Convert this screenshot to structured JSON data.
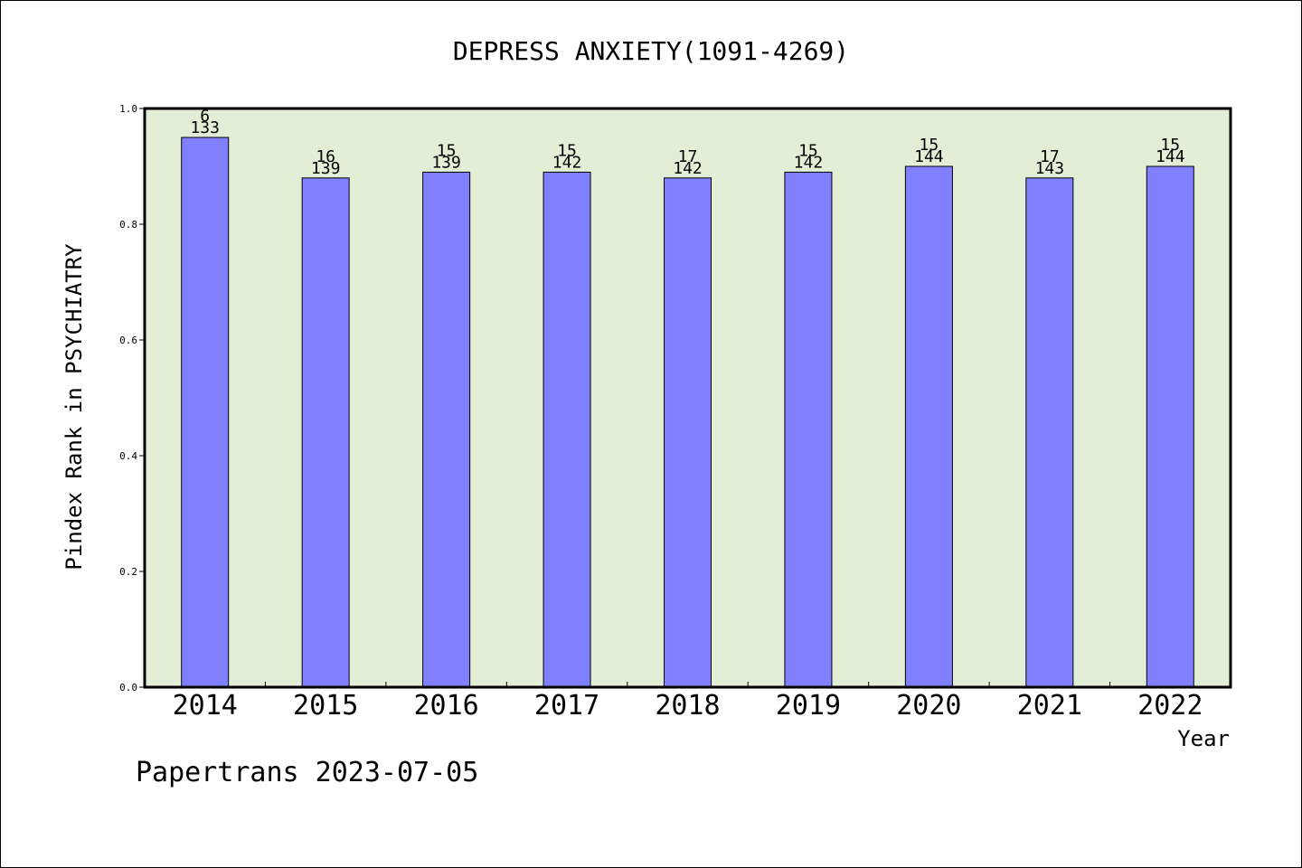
{
  "chart_data": {
    "type": "bar",
    "title": "DEPRESS ANXIETY(1091-4269)",
    "xlabel": "Year",
    "ylabel": "Pindex Rank in PSYCHIATRY",
    "ylim": [
      0,
      1
    ],
    "yticks": [
      "0.0",
      "0.2",
      "0.4",
      "0.6",
      "0.8",
      "1.0"
    ],
    "categories": [
      "2014",
      "2015",
      "2016",
      "2017",
      "2018",
      "2019",
      "2020",
      "2021",
      "2022"
    ],
    "values": [
      0.95,
      0.88,
      0.89,
      0.89,
      0.88,
      0.89,
      0.9,
      0.88,
      0.9
    ],
    "rank_labels": [
      "6",
      "16",
      "15",
      "15",
      "17",
      "15",
      "15",
      "17",
      "15"
    ],
    "total_labels": [
      "133",
      "139",
      "139",
      "142",
      "142",
      "142",
      "144",
      "143",
      "144"
    ],
    "grid": false,
    "colors": {
      "bar": "#8080ff",
      "plot_background": "#e2efd6",
      "axis": "#000000"
    }
  },
  "footer": "Papertrans 2023-07-05"
}
